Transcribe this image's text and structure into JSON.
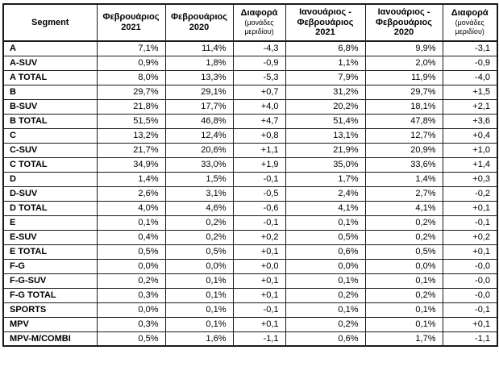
{
  "table": {
    "headers": [
      {
        "title": "Segment",
        "year": "",
        "subtitle": ""
      },
      {
        "title": "Φεβρουάριος",
        "year": "2021",
        "subtitle": ""
      },
      {
        "title": "Φεβρουάριος",
        "year": "2020",
        "subtitle": ""
      },
      {
        "title": "Διαφορά",
        "year": "",
        "subtitle": "(μονάδες μεριδίου)"
      },
      {
        "title": "Ιανουάριος - Φεβρουάριος",
        "year": "2021",
        "subtitle": ""
      },
      {
        "title": "Ιανουάριος - Φεβρουάριος",
        "year": "2020",
        "subtitle": ""
      },
      {
        "title": "Διαφορά",
        "year": "",
        "subtitle": "(μονάδες μεριδίου)"
      }
    ],
    "rows": [
      {
        "segment": "A",
        "values": [
          "7,1%",
          "11,4%",
          "-4,3",
          "6,8%",
          "9,9%",
          "-3,1"
        ]
      },
      {
        "segment": "A-SUV",
        "values": [
          "0,9%",
          "1,8%",
          "-0,9",
          "1,1%",
          "2,0%",
          "-0,9"
        ]
      },
      {
        "segment": "A TOTAL",
        "values": [
          "8,0%",
          "13,3%",
          "-5,3",
          "7,9%",
          "11,9%",
          "-4,0"
        ]
      },
      {
        "segment": "B",
        "values": [
          "29,7%",
          "29,1%",
          "+0,7",
          "31,2%",
          "29,7%",
          "+1,5"
        ]
      },
      {
        "segment": "B-SUV",
        "values": [
          "21,8%",
          "17,7%",
          "+4,0",
          "20,2%",
          "18,1%",
          "+2,1"
        ]
      },
      {
        "segment": "B TOTAL",
        "values": [
          "51,5%",
          "46,8%",
          "+4,7",
          "51,4%",
          "47,8%",
          "+3,6"
        ]
      },
      {
        "segment": "C",
        "values": [
          "13,2%",
          "12,4%",
          "+0,8",
          "13,1%",
          "12,7%",
          "+0,4"
        ]
      },
      {
        "segment": "C-SUV",
        "values": [
          "21,7%",
          "20,6%",
          "+1,1",
          "21,9%",
          "20,9%",
          "+1,0"
        ]
      },
      {
        "segment": "C TOTAL",
        "values": [
          "34,9%",
          "33,0%",
          "+1,9",
          "35,0%",
          "33,6%",
          "+1,4"
        ]
      },
      {
        "segment": "D",
        "values": [
          "1,4%",
          "1,5%",
          "-0,1",
          "1,7%",
          "1,4%",
          "+0,3"
        ]
      },
      {
        "segment": "D-SUV",
        "values": [
          "2,6%",
          "3,1%",
          "-0,5",
          "2,4%",
          "2,7%",
          "-0,2"
        ]
      },
      {
        "segment": "D TOTAL",
        "values": [
          "4,0%",
          "4,6%",
          "-0,6",
          "4,1%",
          "4,1%",
          "+0,1"
        ]
      },
      {
        "segment": "E",
        "values": [
          "0,1%",
          "0,2%",
          "-0,1",
          "0,1%",
          "0,2%",
          "-0,1"
        ]
      },
      {
        "segment": "E-SUV",
        "values": [
          "0,4%",
          "0,2%",
          "+0,2",
          "0,5%",
          "0,2%",
          "+0,2"
        ]
      },
      {
        "segment": "E TOTAL",
        "values": [
          "0,5%",
          "0,5%",
          "+0,1",
          "0,6%",
          "0,5%",
          "+0,1"
        ]
      },
      {
        "segment": "F-G",
        "values": [
          "0,0%",
          "0,0%",
          "+0,0",
          "0,0%",
          "0,0%",
          "-0,0"
        ]
      },
      {
        "segment": "F-G-SUV",
        "values": [
          "0,2%",
          "0,1%",
          "+0,1",
          "0,1%",
          "0,1%",
          "-0,0"
        ]
      },
      {
        "segment": "F-G TOTAL",
        "values": [
          "0,3%",
          "0,1%",
          "+0,1",
          "0,2%",
          "0,2%",
          "-0,0"
        ]
      },
      {
        "segment": "SPORTS",
        "values": [
          "0,0%",
          "0,1%",
          "-0,1",
          "0,1%",
          "0,1%",
          "-0,1"
        ]
      },
      {
        "segment": "MPV",
        "values": [
          "0,3%",
          "0,1%",
          "+0,1",
          "0,2%",
          "0,1%",
          "+0,1"
        ]
      },
      {
        "segment": "MPV-M/COMBI",
        "values": [
          "0,5%",
          "1,6%",
          "-1,1",
          "0,6%",
          "1,7%",
          "-1,1"
        ]
      }
    ]
  },
  "colors": {
    "border": "#1a1a1a",
    "text": "#000000",
    "background": "#ffffff"
  },
  "chart_data": {
    "type": "table",
    "title": "",
    "columns": [
      "Segment",
      "Φεβρουάριος 2021",
      "Φεβρουάριος 2020",
      "Διαφορά (μονάδες μεριδίου)",
      "Ιανουάριος - Φεβρουάριος 2021",
      "Ιανουάριος - Φεβρουάριος 2020",
      "Διαφορά (μονάδες μεριδίου)"
    ],
    "rows": [
      [
        "A",
        "7,1%",
        "11,4%",
        "-4,3",
        "6,8%",
        "9,9%",
        "-3,1"
      ],
      [
        "A-SUV",
        "0,9%",
        "1,8%",
        "-0,9",
        "1,1%",
        "2,0%",
        "-0,9"
      ],
      [
        "A TOTAL",
        "8,0%",
        "13,3%",
        "-5,3",
        "7,9%",
        "11,9%",
        "-4,0"
      ],
      [
        "B",
        "29,7%",
        "29,1%",
        "+0,7",
        "31,2%",
        "29,7%",
        "+1,5"
      ],
      [
        "B-SUV",
        "21,8%",
        "17,7%",
        "+4,0",
        "20,2%",
        "18,1%",
        "+2,1"
      ],
      [
        "B TOTAL",
        "51,5%",
        "46,8%",
        "+4,7",
        "51,4%",
        "47,8%",
        "+3,6"
      ],
      [
        "C",
        "13,2%",
        "12,4%",
        "+0,8",
        "13,1%",
        "12,7%",
        "+0,4"
      ],
      [
        "C-SUV",
        "21,7%",
        "20,6%",
        "+1,1",
        "21,9%",
        "20,9%",
        "+1,0"
      ],
      [
        "C TOTAL",
        "34,9%",
        "33,0%",
        "+1,9",
        "35,0%",
        "33,6%",
        "+1,4"
      ],
      [
        "D",
        "1,4%",
        "1,5%",
        "-0,1",
        "1,7%",
        "1,4%",
        "+0,3"
      ],
      [
        "D-SUV",
        "2,6%",
        "3,1%",
        "-0,5",
        "2,4%",
        "2,7%",
        "-0,2"
      ],
      [
        "D TOTAL",
        "4,0%",
        "4,6%",
        "-0,6",
        "4,1%",
        "4,1%",
        "+0,1"
      ],
      [
        "E",
        "0,1%",
        "0,2%",
        "-0,1",
        "0,1%",
        "0,2%",
        "-0,1"
      ],
      [
        "E-SUV",
        "0,4%",
        "0,2%",
        "+0,2",
        "0,5%",
        "0,2%",
        "+0,2"
      ],
      [
        "E TOTAL",
        "0,5%",
        "0,5%",
        "+0,1",
        "0,6%",
        "0,5%",
        "+0,1"
      ],
      [
        "F-G",
        "0,0%",
        "0,0%",
        "+0,0",
        "0,0%",
        "0,0%",
        "-0,0"
      ],
      [
        "F-G-SUV",
        "0,2%",
        "0,1%",
        "+0,1",
        "0,1%",
        "0,1%",
        "-0,0"
      ],
      [
        "F-G TOTAL",
        "0,3%",
        "0,1%",
        "+0,1",
        "0,2%",
        "0,2%",
        "-0,0"
      ],
      [
        "SPORTS",
        "0,0%",
        "0,1%",
        "-0,1",
        "0,1%",
        "0,1%",
        "-0,1"
      ],
      [
        "MPV",
        "0,3%",
        "0,1%",
        "+0,1",
        "0,2%",
        "0,1%",
        "+0,1"
      ],
      [
        "MPV-M/COMBI",
        "0,5%",
        "1,6%",
        "-1,1",
        "0,6%",
        "1,7%",
        "-1,1"
      ]
    ]
  }
}
